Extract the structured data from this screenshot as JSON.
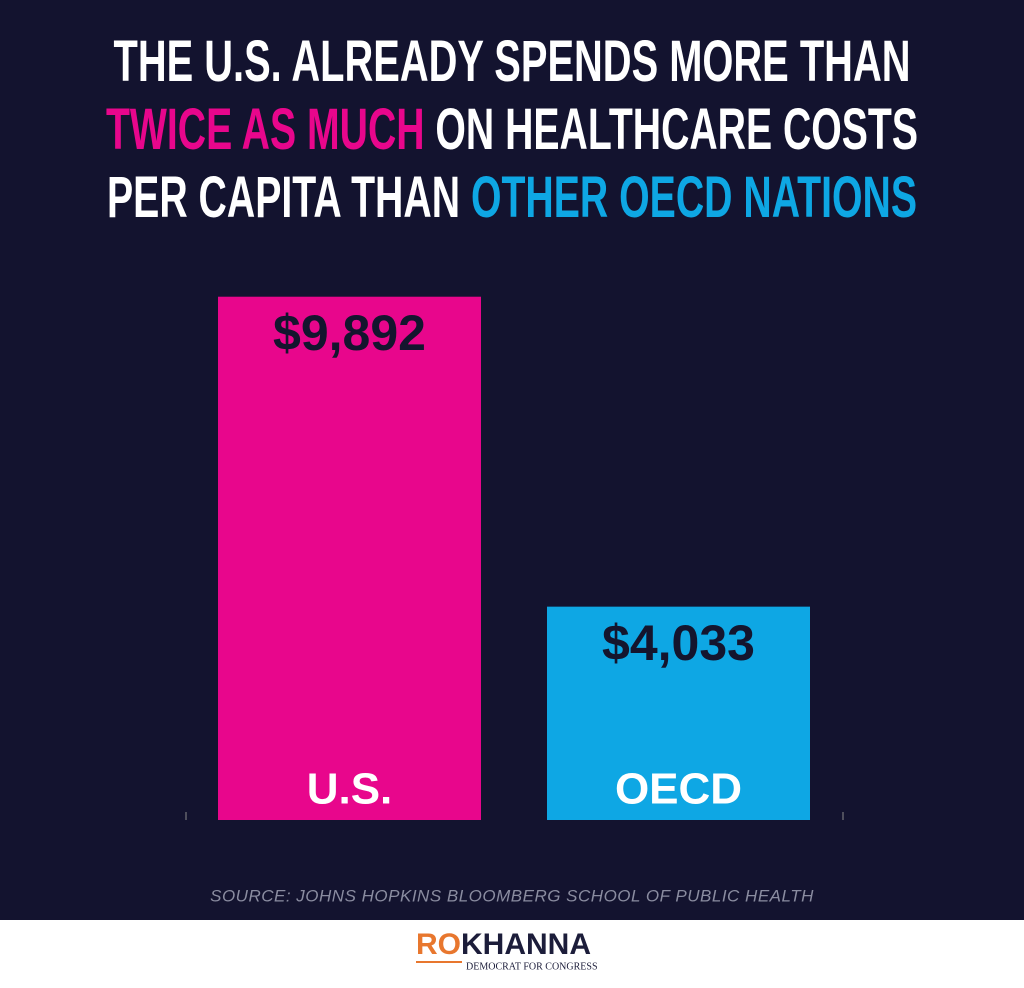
{
  "chart_data": {
    "type": "bar",
    "title_lines": [
      [
        {
          "text": "THE U.S. ALREADY SPENDS MORE THAN",
          "color": "#ffffff"
        }
      ],
      [
        {
          "text": "TWICE AS MUCH",
          "color": "#e8068c"
        },
        {
          "text": " ON HEALTHCARE COSTS",
          "color": "#ffffff"
        }
      ],
      [
        {
          "text": "PER CAPITA THAN ",
          "color": "#ffffff"
        },
        {
          "text": "OTHER OECD NATIONS",
          "color": "#0ea7e4"
        }
      ]
    ],
    "categories": [
      "U.S.",
      "OECD"
    ],
    "values": [
      9892,
      4033
    ],
    "value_labels": [
      "$9,892",
      "$4,033"
    ],
    "colors": [
      "#e8068c",
      "#0ea7e4"
    ],
    "ylim": [
      0,
      10000
    ],
    "source": "SOURCE: JOHNS HOPKINS BLOOMBERG SCHOOL OF PUBLIC HEALTH"
  },
  "footer": {
    "logo_first": "RO",
    "logo_second": "KHANNA",
    "tagline": "DEMOCRAT FOR CONGRESS"
  }
}
